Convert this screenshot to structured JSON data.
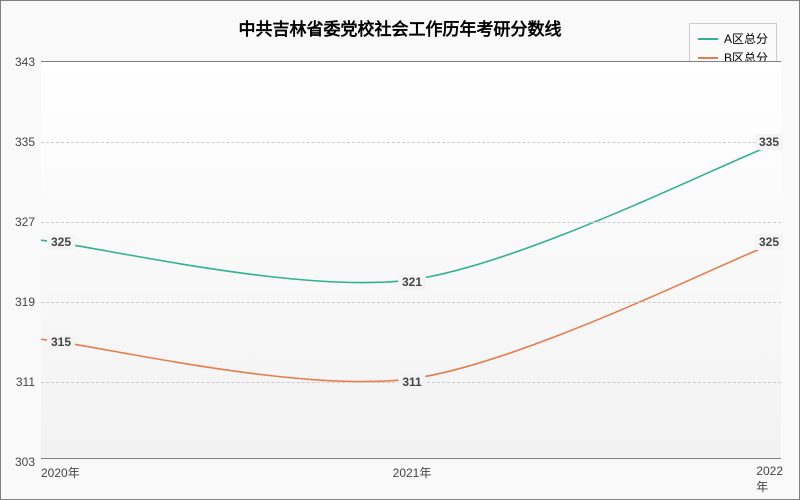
{
  "chart": {
    "type": "line",
    "title": "中共吉林省委党校社会工作历年考研分数线",
    "title_fontsize": 17,
    "title_color": "#000000",
    "background_color": "#f9f9f9",
    "plot_bg_top": "#ffffff",
    "plot_bg_bottom": "#f2f2f2",
    "border_color": "#808080",
    "grid_color": "#cccccc",
    "label_bg": "#f4f4f4",
    "x": {
      "categories": [
        "2020年",
        "2021年",
        "2022年"
      ],
      "fontsize": 12,
      "color": "#444444"
    },
    "y": {
      "min": 303,
      "max": 343,
      "tick_step": 8,
      "ticks": [
        303,
        311,
        319,
        327,
        335,
        343
      ],
      "fontsize": 12,
      "color": "#444444"
    },
    "series": [
      {
        "name": "A区总分",
        "color": "#2fb28f",
        "line_width": 1.6,
        "values": [
          325,
          321,
          335
        ],
        "label_color": "#444444"
      },
      {
        "name": "B区总分",
        "color": "#e87b4c",
        "line_width": 1.6,
        "values": [
          315,
          311,
          325
        ],
        "label_color": "#444444"
      }
    ],
    "legend": {
      "position": "top-right",
      "fontsize": 12,
      "border_color": "#cccccc",
      "bg_color": "rgba(249,249,249,0.9)"
    },
    "curve_smoothing": true
  }
}
